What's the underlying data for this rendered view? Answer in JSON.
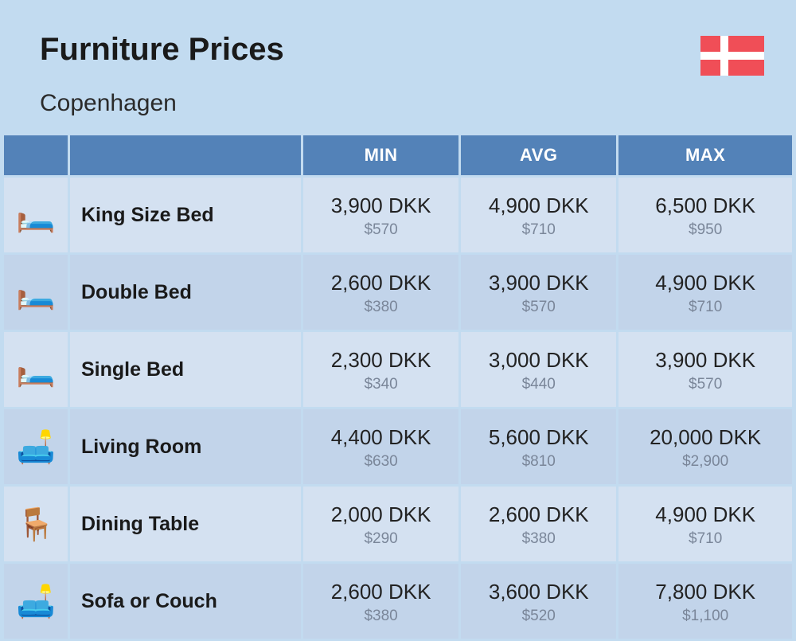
{
  "header": {
    "title": "Furniture Prices",
    "subtitle": "Copenhagen"
  },
  "flag": {
    "country": "Denmark",
    "bg_color": "#f04e57",
    "cross_color": "#ffffff"
  },
  "table": {
    "columns": {
      "min": "MIN",
      "avg": "AVG",
      "max": "MAX"
    },
    "header_bg": "#5382b8",
    "header_text_color": "#ffffff",
    "row_bg_odd": "#d4e1f1",
    "row_bg_even": "#c2d4ea",
    "secondary_text_color": "#7a8699",
    "rows": [
      {
        "icon": "🛏️",
        "name": "King Size Bed",
        "min": {
          "local": "3,900 DKK",
          "usd": "$570"
        },
        "avg": {
          "local": "4,900 DKK",
          "usd": "$710"
        },
        "max": {
          "local": "6,500 DKK",
          "usd": "$950"
        }
      },
      {
        "icon": "🛏️",
        "name": "Double Bed",
        "min": {
          "local": "2,600 DKK",
          "usd": "$380"
        },
        "avg": {
          "local": "3,900 DKK",
          "usd": "$570"
        },
        "max": {
          "local": "4,900 DKK",
          "usd": "$710"
        }
      },
      {
        "icon": "🛏️",
        "name": "Single Bed",
        "min": {
          "local": "2,300 DKK",
          "usd": "$340"
        },
        "avg": {
          "local": "3,000 DKK",
          "usd": "$440"
        },
        "max": {
          "local": "3,900 DKK",
          "usd": "$570"
        }
      },
      {
        "icon": "🛋️",
        "name": "Living Room",
        "min": {
          "local": "4,400 DKK",
          "usd": "$630"
        },
        "avg": {
          "local": "5,600 DKK",
          "usd": "$810"
        },
        "max": {
          "local": "20,000 DKK",
          "usd": "$2,900"
        }
      },
      {
        "icon": "🪑",
        "name": "Dining Table",
        "min": {
          "local": "2,000 DKK",
          "usd": "$290"
        },
        "avg": {
          "local": "2,600 DKK",
          "usd": "$380"
        },
        "max": {
          "local": "4,900 DKK",
          "usd": "$710"
        }
      },
      {
        "icon": "🛋️",
        "name": "Sofa or Couch",
        "min": {
          "local": "2,600 DKK",
          "usd": "$380"
        },
        "avg": {
          "local": "3,600 DKK",
          "usd": "$520"
        },
        "max": {
          "local": "7,800 DKK",
          "usd": "$1,100"
        }
      }
    ]
  }
}
